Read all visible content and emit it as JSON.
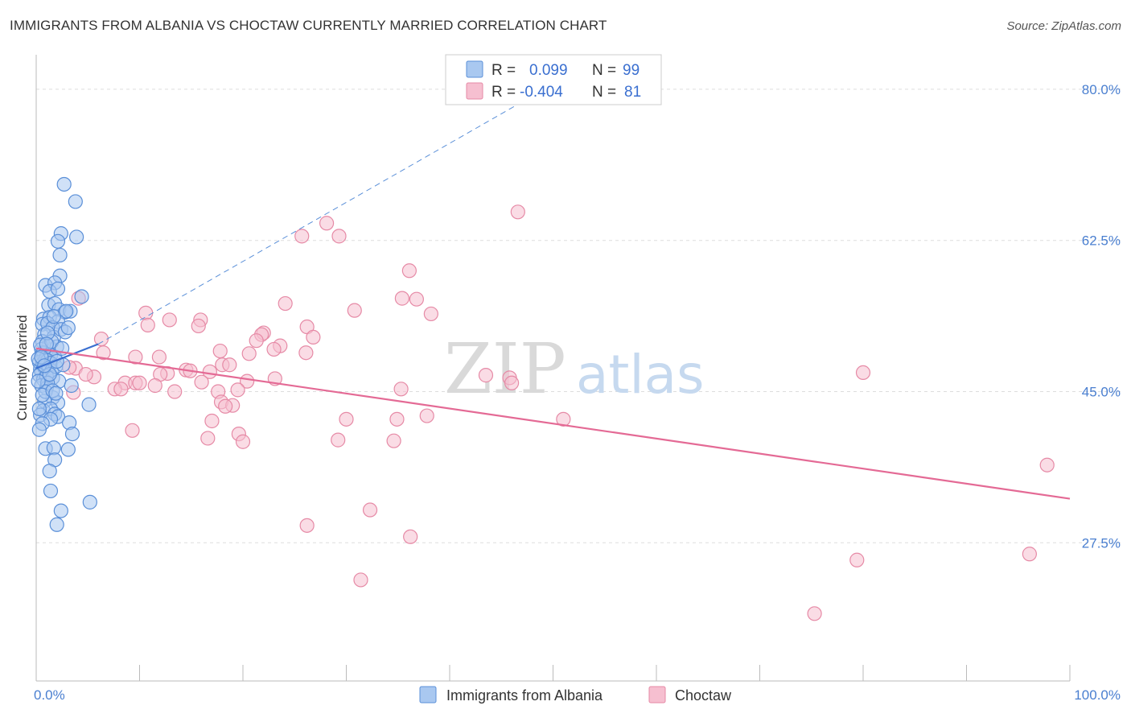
{
  "title": "IMMIGRANTS FROM ALBANIA VS CHOCTAW CURRENTLY MARRIED CORRELATION CHART",
  "source": "Source: ZipAtlas.com",
  "watermark": {
    "zip": "ZIP",
    "atlas": "atlas"
  },
  "colors": {
    "blue_fill": "#a9c8f0",
    "blue_stroke": "#5a8fd8",
    "blue_line": "#3a6fd0",
    "pink_fill": "#f6bfd0",
    "pink_stroke": "#e68aa6",
    "pink_line": "#e46a95",
    "grid": "#dddddd",
    "axis_text": "#4a7fd0"
  },
  "legend": {
    "rows": [
      {
        "r_label": "R =",
        "r_value": "0.099",
        "n_label": "N =",
        "n_value": "99"
      },
      {
        "r_label": "R =",
        "r_value": "-0.404",
        "n_label": "N =",
        "n_value": "81"
      }
    ]
  },
  "chart_data": {
    "type": "scatter",
    "title": "IMMIGRANTS FROM ALBANIA VS CHOCTAW CURRENTLY MARRIED CORRELATION CHART",
    "xlabel": "",
    "ylabel": "Currently Married",
    "xlim": [
      0,
      100
    ],
    "ylim": [
      11.5,
      84
    ],
    "x_tick_labels": [
      "0.0%",
      "100.0%"
    ],
    "y_ticks": [
      27.5,
      45.0,
      62.5,
      80.0
    ],
    "y_tick_labels": [
      "27.5%",
      "45.0%",
      "62.5%",
      "80.0%"
    ],
    "grid": true,
    "legend_position": "bottom-center",
    "series": [
      {
        "name": "Immigrants from Albania",
        "color": "#a9c8f0",
        "trend": {
          "type": "solid",
          "x": [
            0,
            6
          ],
          "y": [
            47.7,
            50.5
          ]
        },
        "trend_extension": {
          "type": "dashed",
          "x": [
            6,
            55
          ],
          "y": [
            50.5,
            84
          ]
        },
        "points": [
          [
            2.7,
            69.0
          ],
          [
            3.8,
            67.0
          ],
          [
            2.4,
            63.3
          ],
          [
            3.9,
            62.9
          ],
          [
            2.1,
            62.4
          ],
          [
            2.3,
            60.8
          ],
          [
            2.3,
            58.4
          ],
          [
            0.9,
            57.3
          ],
          [
            1.8,
            57.6
          ],
          [
            1.3,
            56.6
          ],
          [
            2.1,
            56.9
          ],
          [
            4.4,
            56.0
          ],
          [
            1.2,
            55.0
          ],
          [
            1.8,
            55.2
          ],
          [
            2.2,
            54.5
          ],
          [
            2.8,
            54.2
          ],
          [
            3.3,
            54.3
          ],
          [
            2.9,
            54.3
          ],
          [
            0.7,
            53.4
          ],
          [
            1.3,
            53.6
          ],
          [
            2.1,
            53.1
          ],
          [
            0.6,
            52.8
          ],
          [
            1.1,
            52.9
          ],
          [
            1.6,
            52.4
          ],
          [
            0.8,
            51.6
          ],
          [
            1.7,
            51.3
          ],
          [
            0.6,
            50.8
          ],
          [
            1.2,
            50.3
          ],
          [
            2.0,
            50.2
          ],
          [
            0.5,
            49.9
          ],
          [
            0.6,
            49.4
          ],
          [
            0.7,
            49.5
          ],
          [
            1.0,
            49.1
          ],
          [
            1.4,
            49.2
          ],
          [
            1.8,
            49.0
          ],
          [
            0.3,
            48.4
          ],
          [
            0.6,
            48.2
          ],
          [
            0.9,
            48.7
          ],
          [
            1.1,
            48.6
          ],
          [
            1.4,
            48.3
          ],
          [
            0.4,
            47.6
          ],
          [
            0.5,
            47.3
          ],
          [
            0.8,
            47.8
          ],
          [
            1.2,
            47.7
          ],
          [
            1.5,
            47.4
          ],
          [
            0.3,
            46.9
          ],
          [
            0.7,
            46.4
          ],
          [
            1.0,
            46.8
          ],
          [
            1.6,
            46.6
          ],
          [
            2.2,
            46.2
          ],
          [
            0.5,
            45.7
          ],
          [
            1.0,
            45.4
          ],
          [
            3.4,
            45.7
          ],
          [
            1.6,
            44.3
          ],
          [
            0.8,
            43.9
          ],
          [
            2.1,
            43.7
          ],
          [
            5.1,
            43.5
          ],
          [
            0.7,
            42.8
          ],
          [
            1.4,
            43.0
          ],
          [
            1.8,
            42.4
          ],
          [
            2.1,
            42.1
          ],
          [
            0.4,
            42.3
          ],
          [
            1.4,
            41.8
          ],
          [
            0.6,
            41.3
          ],
          [
            3.2,
            41.4
          ],
          [
            0.3,
            40.6
          ],
          [
            3.5,
            40.1
          ],
          [
            0.9,
            38.4
          ],
          [
            1.7,
            38.5
          ],
          [
            3.1,
            38.3
          ],
          [
            1.8,
            37.1
          ],
          [
            1.3,
            35.8
          ],
          [
            1.4,
            33.5
          ],
          [
            5.2,
            32.2
          ],
          [
            2.4,
            31.2
          ],
          [
            2.0,
            29.6
          ],
          [
            0.2,
            48.8
          ],
          [
            0.4,
            50.4
          ],
          [
            1.9,
            47.9
          ],
          [
            2.6,
            48.1
          ],
          [
            1.1,
            46.0
          ],
          [
            2.4,
            52.2
          ],
          [
            0.9,
            45.0
          ],
          [
            1.5,
            50.8
          ],
          [
            0.6,
            44.6
          ],
          [
            1.7,
            53.7
          ],
          [
            2.8,
            51.9
          ],
          [
            3.1,
            52.4
          ],
          [
            0.2,
            46.2
          ],
          [
            1.3,
            47.0
          ],
          [
            0.5,
            49.0
          ],
          [
            2.0,
            48.5
          ],
          [
            1.1,
            51.8
          ],
          [
            0.8,
            48.0
          ],
          [
            1.6,
            45.1
          ],
          [
            2.5,
            50.0
          ],
          [
            0.3,
            43.0
          ],
          [
            1.9,
            44.8
          ],
          [
            1.0,
            50.5
          ]
        ]
      },
      {
        "name": "Choctaw",
        "color": "#f6bfd0",
        "trend": {
          "type": "solid",
          "x": [
            0,
            100
          ],
          "y": [
            50.0,
            32.6
          ]
        },
        "points": [
          [
            46.6,
            65.8
          ],
          [
            28.1,
            64.5
          ],
          [
            25.7,
            63.0
          ],
          [
            29.3,
            63.0
          ],
          [
            36.1,
            59.0
          ],
          [
            35.4,
            55.8
          ],
          [
            36.8,
            55.7
          ],
          [
            4.1,
            55.8
          ],
          [
            24.1,
            55.2
          ],
          [
            30.8,
            54.4
          ],
          [
            38.2,
            54.0
          ],
          [
            10.6,
            54.1
          ],
          [
            12.9,
            53.3
          ],
          [
            15.9,
            53.3
          ],
          [
            10.8,
            52.7
          ],
          [
            15.7,
            52.6
          ],
          [
            26.2,
            52.5
          ],
          [
            22.0,
            51.8
          ],
          [
            21.8,
            51.6
          ],
          [
            26.8,
            51.3
          ],
          [
            6.3,
            51.1
          ],
          [
            21.3,
            50.9
          ],
          [
            23.6,
            50.3
          ],
          [
            23.0,
            49.9
          ],
          [
            17.8,
            49.7
          ],
          [
            26.1,
            49.5
          ],
          [
            20.6,
            49.4
          ],
          [
            9.6,
            49.0
          ],
          [
            11.9,
            49.0
          ],
          [
            18.0,
            48.1
          ],
          [
            18.7,
            48.1
          ],
          [
            3.8,
            47.7
          ],
          [
            14.5,
            47.5
          ],
          [
            14.9,
            47.4
          ],
          [
            16.8,
            47.3
          ],
          [
            12.7,
            47.1
          ],
          [
            12.0,
            47.0
          ],
          [
            5.6,
            46.7
          ],
          [
            43.5,
            46.9
          ],
          [
            45.8,
            46.6
          ],
          [
            80.0,
            47.2
          ],
          [
            20.4,
            46.2
          ],
          [
            23.1,
            46.5
          ],
          [
            16.0,
            46.1
          ],
          [
            8.6,
            46.0
          ],
          [
            9.6,
            46.0
          ],
          [
            10.0,
            46.0
          ],
          [
            7.6,
            45.3
          ],
          [
            8.2,
            45.3
          ],
          [
            11.5,
            45.7
          ],
          [
            13.4,
            45.0
          ],
          [
            17.6,
            45.0
          ],
          [
            19.5,
            45.2
          ],
          [
            35.3,
            45.3
          ],
          [
            3.6,
            44.9
          ],
          [
            46.0,
            46.0
          ],
          [
            17.9,
            43.8
          ],
          [
            19.0,
            43.4
          ],
          [
            18.3,
            43.3
          ],
          [
            17.0,
            41.6
          ],
          [
            34.9,
            41.8
          ],
          [
            30.0,
            41.8
          ],
          [
            37.8,
            42.2
          ],
          [
            51.0,
            41.8
          ],
          [
            9.3,
            40.5
          ],
          [
            16.6,
            39.6
          ],
          [
            19.6,
            40.1
          ],
          [
            20.0,
            39.2
          ],
          [
            29.2,
            39.4
          ],
          [
            34.6,
            39.3
          ],
          [
            97.8,
            36.5
          ],
          [
            26.2,
            29.5
          ],
          [
            32.3,
            31.3
          ],
          [
            36.2,
            28.2
          ],
          [
            31.4,
            23.2
          ],
          [
            79.4,
            25.5
          ],
          [
            96.1,
            26.2
          ],
          [
            75.3,
            19.3
          ],
          [
            3.2,
            47.8
          ],
          [
            4.8,
            47.0
          ],
          [
            6.5,
            49.5
          ]
        ]
      }
    ]
  },
  "bottom_legend": [
    {
      "label": "Immigrants from Albania"
    },
    {
      "label": "Choctaw"
    }
  ]
}
